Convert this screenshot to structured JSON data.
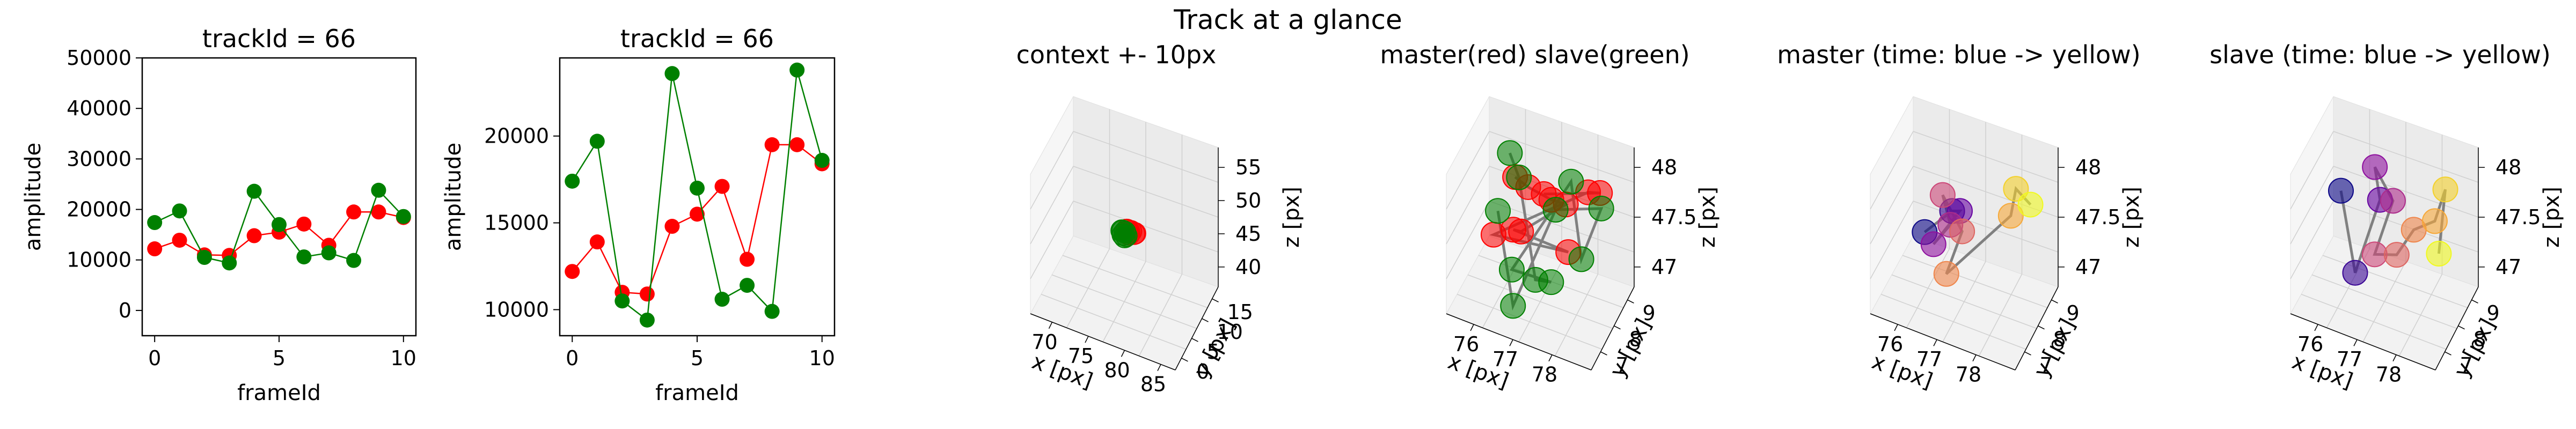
{
  "suptitle": "Track at a glance",
  "colors": {
    "red": "#ff0000",
    "green": "#008000",
    "gray": "#808080",
    "time_colormap": "plasma (blue -> yellow)"
  },
  "chart_data": [
    {
      "type": "line",
      "title": "trackId = 66",
      "xlabel": "frameId",
      "ylabel": "amplitude",
      "xlim": [
        -0.5,
        10.5
      ],
      "ylim": [
        -5000,
        50000
      ],
      "xticks": [
        0,
        5,
        10
      ],
      "yticks": [
        0,
        10000,
        20000,
        30000,
        40000,
        50000
      ],
      "x": [
        0,
        1,
        2,
        3,
        4,
        5,
        6,
        7,
        8,
        9,
        10
      ],
      "series": [
        {
          "color": "#ff0000",
          "values": [
            12200,
            13900,
            11000,
            10900,
            14800,
            15500,
            17100,
            12900,
            19500,
            19500,
            18400
          ]
        },
        {
          "color": "#008000",
          "values": [
            17400,
            19700,
            10500,
            9400,
            23600,
            17000,
            10600,
            11400,
            9900,
            23800,
            18600
          ]
        }
      ]
    },
    {
      "type": "line",
      "title": "trackId = 66",
      "xlabel": "frameId",
      "ylabel": "amplitude",
      "xlim": [
        -0.5,
        10.5
      ],
      "ylim": [
        8500,
        24500
      ],
      "xticks": [
        0,
        5,
        10
      ],
      "yticks": [
        10000,
        15000,
        20000
      ],
      "x": [
        0,
        1,
        2,
        3,
        4,
        5,
        6,
        7,
        8,
        9,
        10
      ],
      "series": [
        {
          "color": "#ff0000",
          "values": [
            12200,
            13900,
            11000,
            10900,
            14800,
            15500,
            17100,
            12900,
            19500,
            19500,
            18400
          ]
        },
        {
          "color": "#008000",
          "values": [
            17400,
            19700,
            10500,
            9400,
            23600,
            17000,
            10600,
            11400,
            9900,
            23800,
            18600
          ]
        }
      ]
    },
    {
      "type": "scatter",
      "projection": "3d",
      "title": "context +- 10px",
      "xlabel": "x [px]",
      "ylabel": "y [px]",
      "zlabel": "z [px]",
      "xlim": [
        67,
        87
      ],
      "ylim": [
        -3,
        18
      ],
      "zlim": [
        37,
        58
      ],
      "xticks": [
        70,
        75,
        80,
        85
      ],
      "yticks": [
        0,
        5,
        10,
        15
      ],
      "zticks": [
        40,
        45,
        50,
        55
      ],
      "series": [
        {
          "color": "#ff0000",
          "points": [
            [
              77.4,
              8.2,
              47.6
            ],
            [
              77.8,
              7.9,
              47.9
            ],
            [
              78.1,
              8.4,
              47.4
            ],
            [
              77.2,
              8.0,
              47.8
            ],
            [
              78.3,
              8.1,
              47.7
            ],
            [
              77.6,
              7.7,
              47.5
            ]
          ]
        },
        {
          "color": "#008000",
          "points": [
            [
              76.8,
              7.5,
              47.2
            ],
            [
              77.0,
              7.8,
              47.5
            ],
            [
              76.5,
              8.0,
              47.4
            ],
            [
              77.3,
              7.4,
              47.3
            ],
            [
              76.7,
              7.7,
              47.6
            ],
            [
              77.1,
              7.3,
              47.1
            ]
          ]
        }
      ]
    },
    {
      "type": "scatter",
      "projection": "3d",
      "title": "master(red) slave(green)",
      "xlabel": "x [px]",
      "ylabel": "y [px]",
      "zlabel": "z [px]",
      "xlim": [
        75.3,
        79.0
      ],
      "ylim": [
        6.3,
        9.5
      ],
      "zlim": [
        46.8,
        48.2
      ],
      "xticks": [
        76,
        77,
        78
      ],
      "yticks": [
        7,
        8,
        9
      ],
      "zticks": [
        47.0,
        47.5,
        48.0
      ],
      "series": [
        {
          "color": "#ff0000",
          "points": [
            [
              76.2,
              8.8,
              47.7
            ],
            [
              76.5,
              8.9,
              47.62
            ],
            [
              77.4,
              8.0,
              47.85
            ],
            [
              77.7,
              8.2,
              47.8
            ],
            [
              76.9,
              7.2,
              47.65
            ],
            [
              76.6,
              7.5,
              47.55
            ],
            [
              77.9,
              7.8,
              47.45
            ],
            [
              76.3,
              6.9,
              47.6
            ],
            [
              78.2,
              8.4,
              47.95
            ],
            [
              78.4,
              8.7,
              47.9
            ],
            [
              77.0,
              8.6,
              47.7
            ]
          ]
        },
        {
          "color": "#008000",
          "points": [
            [
              76.1,
              8.7,
              47.95
            ],
            [
              76.4,
              8.5,
              47.8
            ],
            [
              77.3,
              7.1,
              47.25
            ],
            [
              77.6,
              7.4,
              47.2
            ],
            [
              76.8,
              6.8,
              47.35
            ],
            [
              77.8,
              8.3,
              48.02
            ],
            [
              78.2,
              7.9,
              47.4
            ],
            [
              78.4,
              8.8,
              47.72
            ],
            [
              77.2,
              8.9,
              47.5
            ],
            [
              76.9,
              6.6,
              47.05
            ],
            [
              76.0,
              8.1,
              47.5
            ]
          ]
        }
      ]
    },
    {
      "type": "scatter",
      "projection": "3d",
      "title": "master (time: blue -> yellow)",
      "xlabel": "x [px]",
      "ylabel": "y [px]",
      "zlabel": "z [px]",
      "xlim": [
        75.3,
        79.0
      ],
      "ylim": [
        6.3,
        9.5
      ],
      "zlim": [
        46.8,
        48.2
      ],
      "xticks": [
        76,
        77,
        78
      ],
      "yticks": [
        7,
        8,
        9
      ],
      "zticks": [
        47.0,
        47.5,
        48.0
      ],
      "time_colormap": "plasma",
      "points": [
        [
          75.9,
          8.6,
          47.15
        ],
        [
          76.5,
          8.9,
          47.38
        ],
        [
          76.8,
          8.6,
          47.5
        ],
        [
          76.4,
          7.8,
          47.3
        ],
        [
          76.9,
          7.6,
          47.62
        ],
        [
          76.6,
          7.9,
          47.8
        ],
        [
          77.2,
          7.6,
          47.6
        ],
        [
          76.9,
          7.3,
          47.2
        ],
        [
          78.1,
          8.6,
          47.65
        ],
        [
          78.3,
          8.4,
          48.0
        ],
        [
          78.5,
          8.9,
          47.75
        ]
      ]
    },
    {
      "type": "scatter",
      "projection": "3d",
      "title": "slave (time: blue -> yellow)",
      "xlabel": "x [px]",
      "ylabel": "y [px]",
      "zlabel": "z [px]",
      "xlim": [
        75.3,
        79.0
      ],
      "ylim": [
        6.3,
        9.5
      ],
      "zlim": [
        46.8,
        48.2
      ],
      "xticks": [
        76,
        77,
        78
      ],
      "yticks": [
        7,
        8,
        9
      ],
      "zticks": [
        47.0,
        47.5,
        48.0
      ],
      "time_colormap": "plasma",
      "points": [
        [
          75.8,
          8.6,
          47.55
        ],
        [
          76.3,
          8.2,
          46.9
        ],
        [
          76.9,
          8.3,
          47.7
        ],
        [
          76.7,
          8.5,
          47.95
        ],
        [
          77.3,
          8.1,
          47.8
        ],
        [
          76.9,
          7.9,
          47.25
        ],
        [
          77.6,
          7.5,
          47.45
        ],
        [
          77.9,
          7.9,
          47.65
        ],
        [
          78.3,
          8.3,
          47.7
        ],
        [
          78.5,
          8.5,
          48.0
        ],
        [
          78.3,
          8.6,
          47.3
        ]
      ]
    }
  ]
}
